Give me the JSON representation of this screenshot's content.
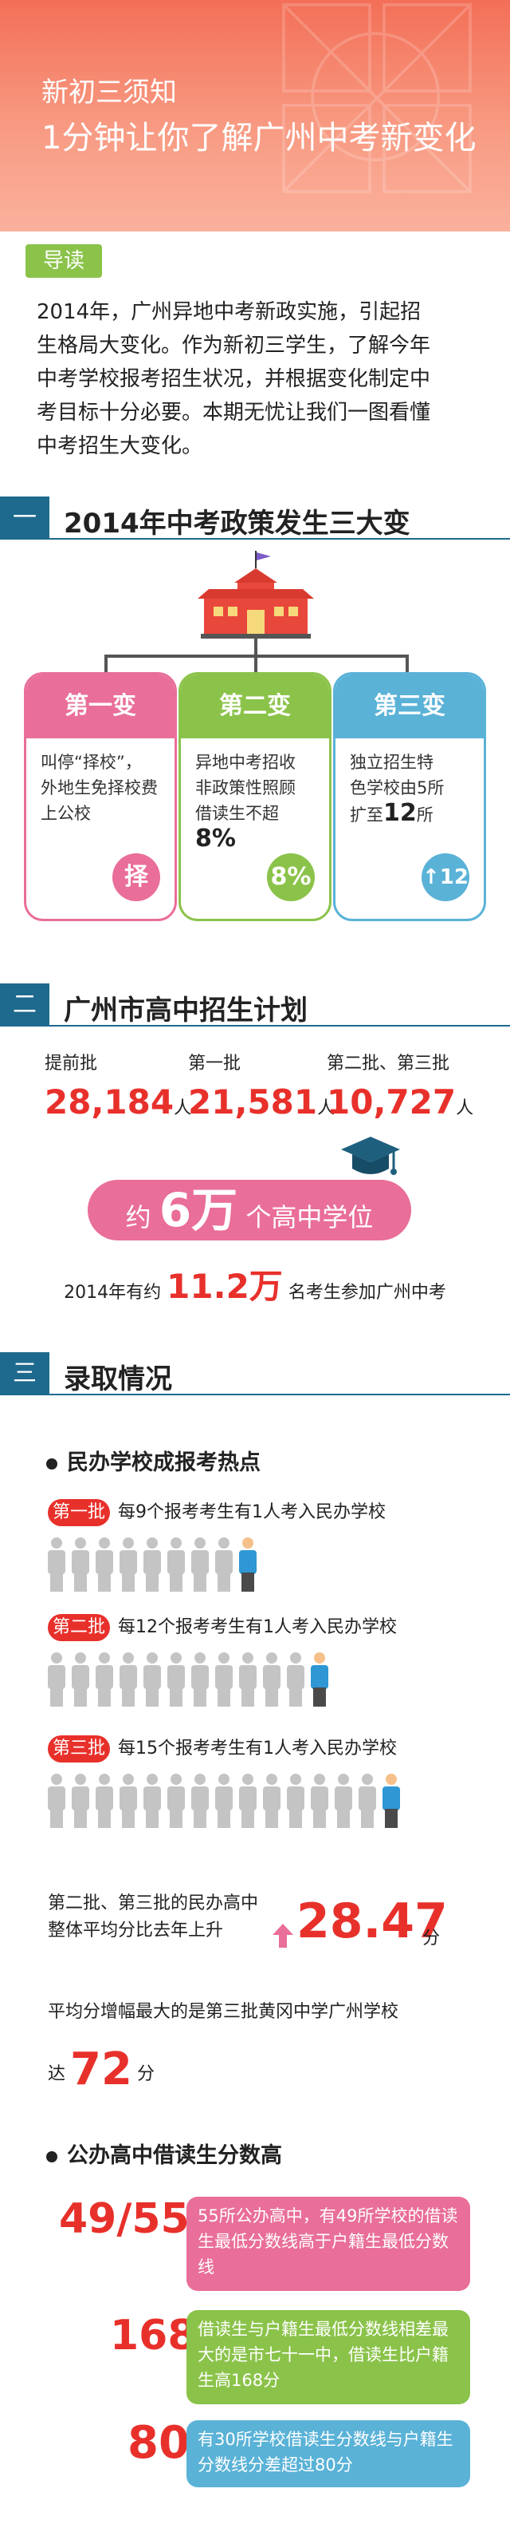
{
  "header": {
    "subtitle": "新初三须知",
    "title": "1分钟让你了解广州中考新变化"
  },
  "intro": {
    "tag": "导读",
    "lines": [
      "2014年，广州异地中考新政实施，引起招",
      "生格局大变化。作为新初三学生，了解今年",
      "中考学校报考招生状况，并根据变化制定中",
      "考目标十分必要。本期无忧让我们一图看懂",
      "中考招生大变化。"
    ]
  },
  "section1": {
    "num": "一",
    "title": "2014年中考政策发生三大变",
    "cards": [
      {
        "head": "第一变",
        "lines": [
          "叫停“择校”，",
          "外地生免择校费",
          "上公校"
        ],
        "icon": "择",
        "color": "#e96e99"
      },
      {
        "head": "第二变",
        "lines": [
          "异地中考招收",
          "非政策性照顾",
          "借读生不超"
        ],
        "emph": "8%",
        "icon": "8%",
        "color": "#8bc34a"
      },
      {
        "head": "第三变",
        "lines": [
          "独立招生特",
          "色学校由5所",
          "扩至"
        ],
        "emph": "12",
        "tail": "所",
        "icon": "↑12",
        "color": "#5ab2d7"
      }
    ]
  },
  "section2": {
    "num": "二",
    "title": "广州市高中招生计划",
    "plans": [
      {
        "label": "提前批",
        "value": "28,184",
        "unit": "人"
      },
      {
        "label": "第一批",
        "value": "21,581",
        "unit": "人"
      },
      {
        "label": "第二批、第三批",
        "value": "10,727",
        "unit": "人"
      }
    ],
    "seats": {
      "prefix": "约",
      "value": "6万",
      "suffix": "个高中学位"
    },
    "exam": {
      "prefix": "2014年有约",
      "value": "11.2万",
      "suffix": "名考生参加广州中考"
    }
  },
  "section3": {
    "num": "三",
    "title": "录取情况",
    "private_heading": "民办学校成报考热点",
    "batches": [
      {
        "tag": "第一批",
        "text": "每9个报考考生有1人考入民办学校",
        "count": 9
      },
      {
        "tag": "第二批",
        "text": "每12个报考考生有1人考入民办学校",
        "count": 12
      },
      {
        "tag": "第三批",
        "text": "每15个报考考生有1人考入民办学校",
        "count": 15
      }
    ],
    "avg": {
      "line1": "第二批、第三批的民办高中",
      "line2": "整体平均分比去年上升",
      "value": "28.47",
      "unit": "分"
    },
    "most": {
      "line": "平均分增幅最大的是第三批黄冈中学广州学校",
      "prefix": "达",
      "value": "72",
      "unit": "分"
    },
    "public_heading": "公办高中借读生分数高",
    "stats": [
      {
        "value": "49/55",
        "text": "55所公办高中，有49所学校的借读生最低分数线高于户籍生最低分数线",
        "color": "#e96e99"
      },
      {
        "value": "168",
        "text": "借读生与户籍生最低分数线相差最大的是市七十一中，借读生比户籍生高168分",
        "color": "#8bc34a"
      },
      {
        "value": "80",
        "text": "有30所学校借读生分数线与户籍生分数线分差超过80分",
        "color": "#5ab2d7"
      }
    ]
  }
}
